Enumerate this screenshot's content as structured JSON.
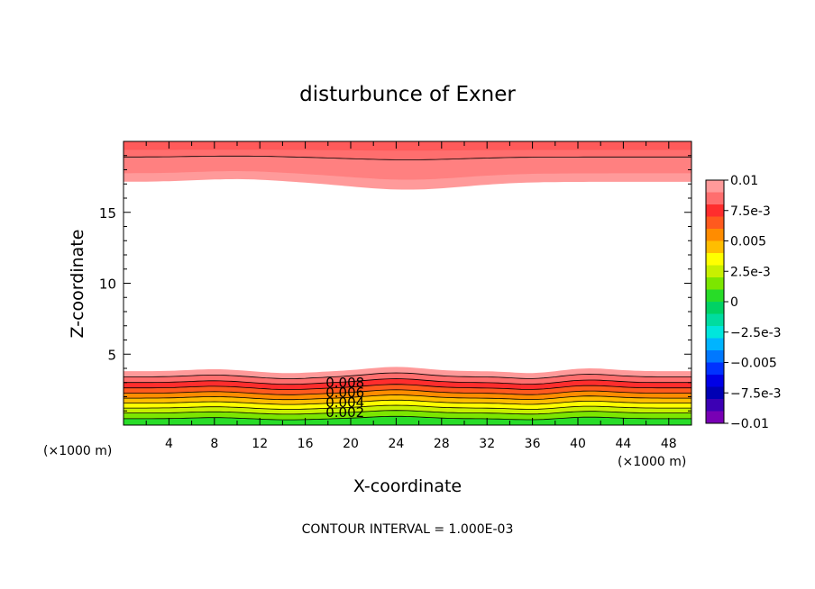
{
  "chart_data": {
    "type": "heatmap",
    "title": "disturbunce of Exner",
    "xlabel": "X-coordinate",
    "ylabel": "Z-coordinate",
    "x_unit": "(×1000 m)",
    "y_unit": "(×1000 m)",
    "xlim": [
      0,
      50
    ],
    "ylim": [
      0,
      20
    ],
    "x_ticks": [
      4,
      8,
      12,
      16,
      20,
      24,
      28,
      32,
      36,
      40,
      44,
      48
    ],
    "y_ticks": [
      5,
      10,
      15
    ],
    "footer": "CONTOUR INTERVAL = 1.000E-03",
    "contour_interval": 0.001,
    "contour_labels": [
      {
        "text": "0.008",
        "x": 19.5,
        "y": 3.0
      },
      {
        "text": "0.006",
        "x": 19.5,
        "y": 2.3
      },
      {
        "text": "0.004",
        "x": 19.5,
        "y": 1.6
      },
      {
        "text": "0.002",
        "x": 19.5,
        "y": 0.9
      }
    ],
    "colorbar": {
      "labels": [
        "0.01",
        "7.5e-3",
        "0.005",
        "2.5e-3",
        "0",
        "−2.5e-3",
        "−0.005",
        "−7.5e-3",
        "−0.01"
      ],
      "levels": [
        {
          "lo": 0.009,
          "hi": 0.01,
          "color": "#ff9a9a"
        },
        {
          "lo": 0.008,
          "hi": 0.009,
          "color": "#ff6e6e"
        },
        {
          "lo": 0.007,
          "hi": 0.008,
          "color": "#ff2d2d"
        },
        {
          "lo": 0.006,
          "hi": 0.007,
          "color": "#ff5a1e"
        },
        {
          "lo": 0.005,
          "hi": 0.006,
          "color": "#ff8c00"
        },
        {
          "lo": 0.004,
          "hi": 0.005,
          "color": "#ffbe00"
        },
        {
          "lo": 0.003,
          "hi": 0.004,
          "color": "#ffff00"
        },
        {
          "lo": 0.002,
          "hi": 0.003,
          "color": "#c8f000"
        },
        {
          "lo": 0.001,
          "hi": 0.002,
          "color": "#7ce600"
        },
        {
          "lo": 0.0,
          "hi": 0.001,
          "color": "#28dc28"
        },
        {
          "lo": -0.001,
          "hi": 0.0,
          "color": "#00d264"
        },
        {
          "lo": -0.002,
          "hi": -0.001,
          "color": "#00dca0"
        },
        {
          "lo": -0.003,
          "hi": -0.002,
          "color": "#00e6dc"
        },
        {
          "lo": -0.004,
          "hi": -0.003,
          "color": "#00b4ff"
        },
        {
          "lo": -0.005,
          "hi": -0.004,
          "color": "#0078ff"
        },
        {
          "lo": -0.006,
          "hi": -0.005,
          "color": "#0032ff"
        },
        {
          "lo": -0.007,
          "hi": -0.006,
          "color": "#0000e6"
        },
        {
          "lo": -0.008,
          "hi": -0.007,
          "color": "#0000b4"
        },
        {
          "lo": -0.009,
          "hi": -0.008,
          "color": "#3c00b4"
        },
        {
          "lo": -0.01,
          "hi": -0.009,
          "color": "#7800b4"
        }
      ]
    },
    "upper_bands": [
      {
        "color": "#ff9a9a",
        "base_z": 17.15,
        "amp": 0.55
      },
      {
        "color": "#ff8080",
        "base_z": 17.75,
        "amp": 0.45
      },
      {
        "color": "#ff6e6e",
        "base_z": 18.9,
        "amp": 0.2,
        "contour": true
      },
      {
        "color": "#ff5a5a",
        "base_z": 19.4,
        "amp": 0.05
      }
    ],
    "lower_bands": [
      {
        "color": "#ff9a9a",
        "base_z": 3.8,
        "contour": false
      },
      {
        "color": "#ff6e6e",
        "base_z": 3.4,
        "contour": true
      },
      {
        "color": "#ff2d2d",
        "base_z": 3.0,
        "contour": true
      },
      {
        "color": "#ff5a1e",
        "base_z": 2.62,
        "contour": true
      },
      {
        "color": "#ff8c00",
        "base_z": 2.25,
        "contour": true
      },
      {
        "color": "#ffbe00",
        "base_z": 1.9,
        "contour": true
      },
      {
        "color": "#ffff00",
        "base_z": 1.55,
        "contour": true
      },
      {
        "color": "#c8f000",
        "base_z": 1.2,
        "contour": true
      },
      {
        "color": "#7ce600",
        "base_z": 0.85,
        "contour": true
      },
      {
        "color": "#28dc28",
        "base_z": 0.45,
        "contour": true
      }
    ]
  }
}
